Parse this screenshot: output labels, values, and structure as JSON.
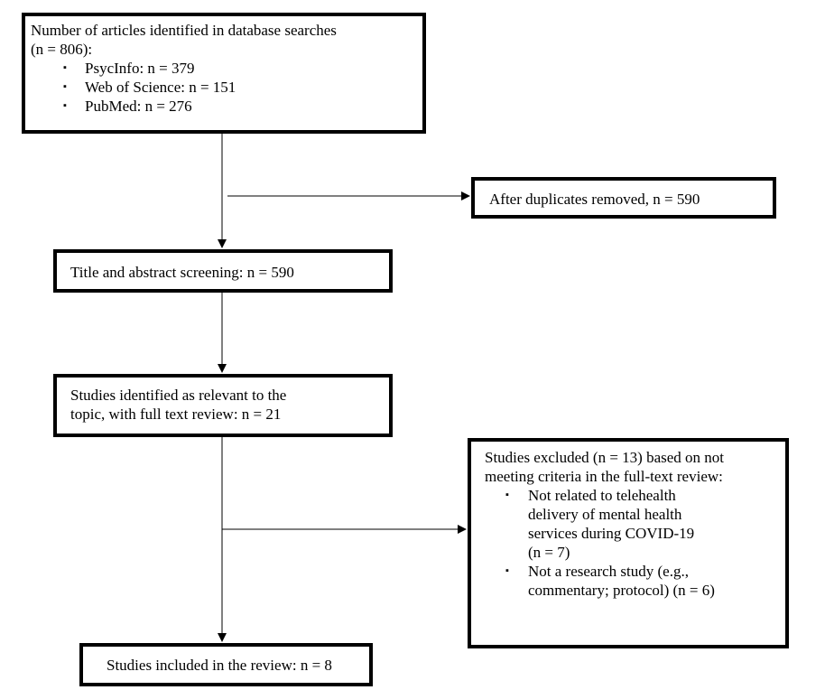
{
  "search": {
    "heading": "Number of articles identified in database searches",
    "total": "(n = 806):",
    "sources": [
      "PsycInfo: n = 379",
      "Web of Science: n = 151",
      "PubMed: n = 276"
    ]
  },
  "duplicates": {
    "text": "After duplicates removed, n = 590"
  },
  "screening": {
    "text": "Title and abstract screening: n = 590"
  },
  "relevant": {
    "line1": "Studies identified as relevant to the",
    "line2": "topic, with full text review: n = 21"
  },
  "excluded": {
    "line1": "Studies excluded (n = 13) based on not",
    "line2": "meeting criteria in the full-text review:",
    "reasons": [
      {
        "lines": [
          "Not related to telehealth",
          "delivery of mental health",
          "services during COVID-19",
          "(n = 7)"
        ]
      },
      {
        "lines": [
          "Not a research study (e.g.,",
          "commentary; protocol) (n = 6)"
        ]
      }
    ]
  },
  "included": {
    "text": "Studies included in the review: n = 8"
  },
  "bullet_glyph": "▪"
}
